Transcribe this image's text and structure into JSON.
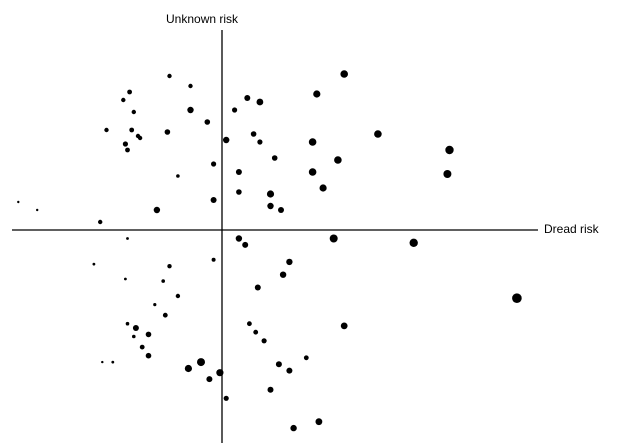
{
  "chart_data": {
    "type": "scatter",
    "title": "",
    "xlabel": "Dread risk",
    "ylabel": "Unknown risk",
    "xlim": [
      -10,
      15
    ],
    "ylim": [
      -10,
      10
    ],
    "grid": false,
    "legend": "none",
    "marker_color": "#000000",
    "series": [
      {
        "points": [
          {
            "x": -9.7,
            "y": 1.4,
            "r": 1.2
          },
          {
            "x": -8.8,
            "y": 1.0,
            "r": 1.2
          },
          {
            "x": -5.8,
            "y": 0.4,
            "r": 2.2
          },
          {
            "x": -5.5,
            "y": 5.0,
            "r": 2.2
          },
          {
            "x": -4.7,
            "y": 6.5,
            "r": 2.2
          },
          {
            "x": -4.4,
            "y": 6.9,
            "r": 2.4
          },
          {
            "x": -4.2,
            "y": 5.9,
            "r": 2.2
          },
          {
            "x": -4.3,
            "y": 5.0,
            "r": 2.4
          },
          {
            "x": -4.0,
            "y": 4.7,
            "r": 2.2
          },
          {
            "x": -4.6,
            "y": 4.3,
            "r": 2.6
          },
          {
            "x": -3.9,
            "y": 4.6,
            "r": 2.2
          },
          {
            "x": -4.5,
            "y": 4.0,
            "r": 2.4
          },
          {
            "x": -2.5,
            "y": 7.7,
            "r": 2.2
          },
          {
            "x": -1.5,
            "y": 7.2,
            "r": 2.2
          },
          {
            "x": -2.6,
            "y": 4.9,
            "r": 2.8
          },
          {
            "x": -2.1,
            "y": 2.7,
            "r": 1.8
          },
          {
            "x": -3.1,
            "y": 1.0,
            "r": 3.2
          },
          {
            "x": -1.5,
            "y": 6.0,
            "r": 3.2
          },
          {
            "x": -0.7,
            "y": 5.4,
            "r": 2.8
          },
          {
            "x": 0.6,
            "y": 6.0,
            "r": 2.6
          },
          {
            "x": 1.2,
            "y": 6.6,
            "r": 3.0
          },
          {
            "x": 1.8,
            "y": 6.4,
            "r": 3.4
          },
          {
            "x": -0.4,
            "y": 3.3,
            "r": 2.6
          },
          {
            "x": 0.2,
            "y": 4.5,
            "r": 3.2
          },
          {
            "x": 1.5,
            "y": 4.8,
            "r": 2.8
          },
          {
            "x": 1.8,
            "y": 4.4,
            "r": 2.6
          },
          {
            "x": 2.5,
            "y": 3.6,
            "r": 2.8
          },
          {
            "x": 0.8,
            "y": 2.9,
            "r": 3.0
          },
          {
            "x": 0.8,
            "y": 1.9,
            "r": 2.8
          },
          {
            "x": -0.4,
            "y": 1.5,
            "r": 3.0
          },
          {
            "x": 2.3,
            "y": 1.8,
            "r": 3.6
          },
          {
            "x": 2.3,
            "y": 1.2,
            "r": 3.2
          },
          {
            "x": 2.8,
            "y": 1.0,
            "r": 3.0
          },
          {
            "x": 4.5,
            "y": 6.8,
            "r": 3.6
          },
          {
            "x": 5.8,
            "y": 7.8,
            "r": 3.8
          },
          {
            "x": 4.3,
            "y": 4.4,
            "r": 3.8
          },
          {
            "x": 5.5,
            "y": 3.5,
            "r": 3.8
          },
          {
            "x": 4.3,
            "y": 2.9,
            "r": 3.8
          },
          {
            "x": 4.8,
            "y": 2.1,
            "r": 3.6
          },
          {
            "x": 7.4,
            "y": 4.8,
            "r": 3.8
          },
          {
            "x": 10.8,
            "y": 4.0,
            "r": 4.2
          },
          {
            "x": 10.7,
            "y": 2.8,
            "r": 4.0
          },
          {
            "x": -4.5,
            "y": -0.4,
            "r": 1.4
          },
          {
            "x": -6.1,
            "y": -1.6,
            "r": 1.4
          },
          {
            "x": -4.6,
            "y": -2.3,
            "r": 1.4
          },
          {
            "x": -2.5,
            "y": -1.7,
            "r": 2.2
          },
          {
            "x": -2.8,
            "y": -2.4,
            "r": 1.8
          },
          {
            "x": -2.1,
            "y": -3.1,
            "r": 2.2
          },
          {
            "x": -3.2,
            "y": -3.5,
            "r": 1.6
          },
          {
            "x": -2.7,
            "y": -4.0,
            "r": 2.4
          },
          {
            "x": -4.5,
            "y": -4.4,
            "r": 1.8
          },
          {
            "x": -4.1,
            "y": -4.6,
            "r": 3.0
          },
          {
            "x": -4.2,
            "y": -5.0,
            "r": 1.8
          },
          {
            "x": -3.5,
            "y": -4.9,
            "r": 2.8
          },
          {
            "x": -3.8,
            "y": -5.5,
            "r": 2.4
          },
          {
            "x": -3.5,
            "y": -5.9,
            "r": 2.8
          },
          {
            "x": -5.7,
            "y": -6.2,
            "r": 1.2
          },
          {
            "x": -5.2,
            "y": -6.2,
            "r": 1.4
          },
          {
            "x": -0.4,
            "y": -1.4,
            "r": 2.0
          },
          {
            "x": 0.8,
            "y": -0.4,
            "r": 3.2
          },
          {
            "x": 1.1,
            "y": -0.7,
            "r": 3.0
          },
          {
            "x": 3.2,
            "y": -1.5,
            "r": 3.2
          },
          {
            "x": 2.9,
            "y": -2.1,
            "r": 3.2
          },
          {
            "x": 1.7,
            "y": -2.7,
            "r": 3.0
          },
          {
            "x": 1.3,
            "y": -4.4,
            "r": 2.4
          },
          {
            "x": 1.6,
            "y": -4.8,
            "r": 2.4
          },
          {
            "x": 2.0,
            "y": -5.2,
            "r": 2.6
          },
          {
            "x": 5.8,
            "y": -4.5,
            "r": 3.4
          },
          {
            "x": 4.0,
            "y": -6.0,
            "r": 2.4
          },
          {
            "x": 2.7,
            "y": -6.3,
            "r": 3.0
          },
          {
            "x": 3.2,
            "y": -6.6,
            "r": 3.0
          },
          {
            "x": 2.3,
            "y": -7.5,
            "r": 3.0
          },
          {
            "x": -1.0,
            "y": -6.2,
            "r": 4.0
          },
          {
            "x": -1.6,
            "y": -6.5,
            "r": 3.6
          },
          {
            "x": -0.1,
            "y": -6.7,
            "r": 3.6
          },
          {
            "x": -0.6,
            "y": -7.0,
            "r": 3.0
          },
          {
            "x": 0.2,
            "y": -7.9,
            "r": 2.6
          },
          {
            "x": 3.4,
            "y": -9.3,
            "r": 3.2
          },
          {
            "x": 4.6,
            "y": -9.0,
            "r": 3.4
          },
          {
            "x": 5.3,
            "y": -0.4,
            "r": 4.0
          },
          {
            "x": 9.1,
            "y": -0.6,
            "r": 4.2
          },
          {
            "x": 14.0,
            "y": -3.2,
            "r": 4.8
          }
        ]
      }
    ]
  }
}
